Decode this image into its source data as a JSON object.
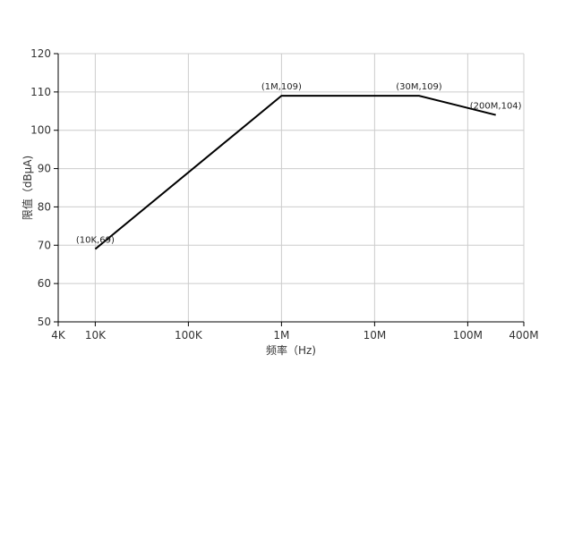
{
  "chart_data": {
    "type": "line",
    "xscale": "log",
    "xlim": [
      4000,
      400000000
    ],
    "ylim": [
      50,
      120
    ],
    "xlabel": "频率（Hz)",
    "ylabel": "限值（dBμA)",
    "grid": true,
    "x_ticks": [
      {
        "value": 4000,
        "label": "4K"
      },
      {
        "value": 10000,
        "label": "10K"
      },
      {
        "value": 100000,
        "label": "100K"
      },
      {
        "value": 1000000,
        "label": "1M"
      },
      {
        "value": 10000000,
        "label": "10M"
      },
      {
        "value": 100000000,
        "label": "100M"
      },
      {
        "value": 400000000,
        "label": "400M"
      }
    ],
    "y_ticks": [
      50,
      60,
      70,
      80,
      90,
      100,
      110,
      120
    ],
    "series": [
      {
        "color": "#000000",
        "points": [
          {
            "x": 10000,
            "y": 69,
            "label": "(10K,69)"
          },
          {
            "x": 1000000,
            "y": 109,
            "label": "(1M,109)"
          },
          {
            "x": 30000000,
            "y": 109,
            "label": "(30M,109)"
          },
          {
            "x": 200000000,
            "y": 104,
            "label": "(200M,104)"
          }
        ]
      }
    ]
  }
}
